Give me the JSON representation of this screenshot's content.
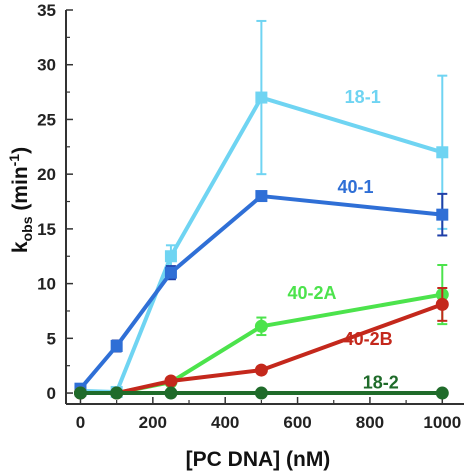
{
  "chart_data": {
    "type": "line",
    "title": "",
    "xlabel": "[PC DNA] (nM)",
    "ylabel": {
      "base": "k",
      "subscript": "obs",
      "unit": " (min",
      "superscript": "-1",
      "close": ")"
    },
    "xlim": [
      -40,
      1060
    ],
    "ylim": [
      -1,
      35
    ],
    "xticks": [
      0,
      200,
      400,
      600,
      800,
      1000
    ],
    "yticks": [
      0,
      5,
      10,
      15,
      20,
      25,
      30,
      35
    ],
    "grid": false,
    "legend": "none",
    "series": [
      {
        "name": "18-1",
        "color": "#6fd4f2",
        "marker": "square",
        "x": [
          0,
          100,
          250,
          500,
          1000
        ],
        "y": [
          0.2,
          0.1,
          12.5,
          27.0,
          22.0
        ],
        "err": [
          0.3,
          0.3,
          1.0,
          7.0,
          7.0
        ]
      },
      {
        "name": "40-1",
        "color": "#2f6fd6",
        "marker": "square",
        "x": [
          0,
          100,
          250,
          500,
          1000
        ],
        "y": [
          0.4,
          4.3,
          11.0,
          18.0,
          16.3
        ],
        "err": [
          0.3,
          0.5,
          0.6,
          0.4,
          1.9
        ],
        "errColor": "#1f3fa8"
      },
      {
        "name": "40-2A",
        "color": "#4ce34c",
        "marker": "circle",
        "x": [
          0,
          100,
          250,
          500,
          1000
        ],
        "y": [
          0.0,
          0.0,
          1.0,
          6.1,
          9.0
        ],
        "err": [
          0.2,
          0.2,
          0.3,
          0.8,
          2.7
        ]
      },
      {
        "name": "40-2B",
        "color": "#c4281c",
        "marker": "circle",
        "x": [
          0,
          100,
          250,
          500,
          1000
        ],
        "y": [
          0.0,
          0.0,
          1.1,
          2.1,
          8.1
        ],
        "err": [
          0.2,
          0.2,
          0.3,
          0.3,
          1.5
        ]
      },
      {
        "name": "18-2",
        "color": "#1f6b2a",
        "marker": "circle",
        "x": [
          0,
          100,
          250,
          500,
          1000
        ],
        "y": [
          0.0,
          0.0,
          0.0,
          0.0,
          0.0
        ],
        "err": [
          0.1,
          0.1,
          0.1,
          0.1,
          0.1
        ]
      }
    ]
  }
}
